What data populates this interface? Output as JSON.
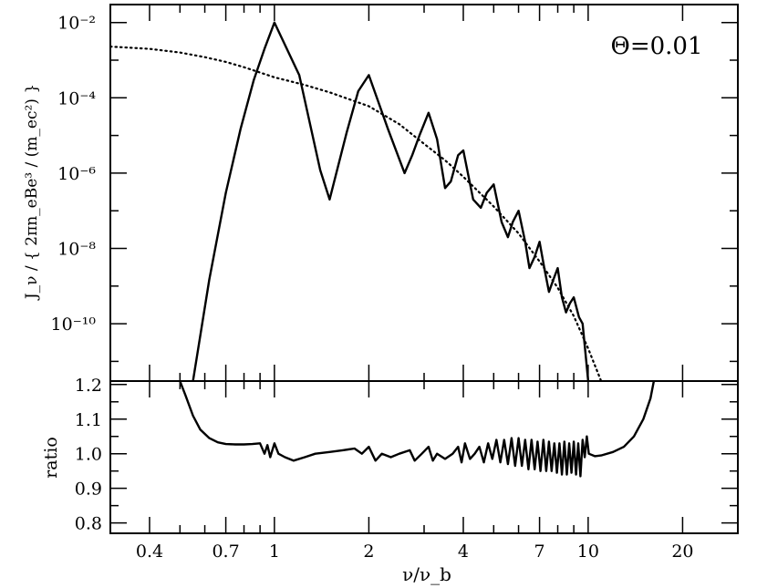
{
  "chart_data": [
    {
      "type": "line",
      "panel": "top",
      "annotation": "Θ=0.01",
      "ylabel": "J_ν / { 2πn_eBe³ / (m_ec²) }",
      "xscale": "log",
      "yscale": "log",
      "xlim": [
        0.3,
        30
      ],
      "ylim": [
        3e-12,
        0.03
      ],
      "yticks": [
        {
          "value": 1e-10,
          "label": "10⁻¹⁰"
        },
        {
          "value": 1e-08,
          "label": "10⁻⁸"
        },
        {
          "value": 1e-06,
          "label": "10⁻⁶"
        },
        {
          "value": 0.0001,
          "label": "10⁻⁴"
        },
        {
          "value": 0.01,
          "label": "10⁻²"
        }
      ],
      "series": [
        {
          "style": "solid",
          "x": [
            0.55,
            0.62,
            0.7,
            0.78,
            0.86,
            0.93,
            1.0,
            1.2,
            1.4,
            1.5,
            1.7,
            1.85,
            2.0,
            2.3,
            2.6,
            2.75,
            2.9,
            3.1,
            3.3,
            3.5,
            3.65,
            3.85,
            4.0,
            4.3,
            4.55,
            4.75,
            5.0,
            5.3,
            5.55,
            5.75,
            6.0,
            6.3,
            6.5,
            6.75,
            7.0,
            7.25,
            7.5,
            7.75,
            8.0,
            8.25,
            8.5,
            8.75,
            9.0,
            9.35,
            9.6,
            10.0
          ],
          "y": [
            3e-12,
            1.5e-09,
            3e-07,
            1.5e-05,
            0.0003,
            0.002,
            0.01,
            0.0004,
            1.2e-06,
            2e-07,
            1.2e-05,
            0.00015,
            0.0004,
            1.5e-05,
            1e-06,
            3e-06,
            1e-05,
            4e-05,
            8e-06,
            4e-07,
            6e-07,
            3e-06,
            4e-06,
            2e-07,
            1.2e-07,
            3e-07,
            5e-07,
            5e-08,
            2e-08,
            5e-08,
            1e-07,
            1.5e-08,
            3e-09,
            6e-09,
            1.5e-08,
            3e-09,
            7e-10,
            1.5e-09,
            3e-09,
            5e-10,
            2e-10,
            3.5e-10,
            5e-10,
            1.5e-10,
            1e-10,
            3e-12
          ]
        },
        {
          "style": "dotted",
          "x": [
            0.3,
            0.4,
            0.5,
            0.6,
            0.7,
            0.8,
            1.0,
            1.25,
            1.5,
            2.0,
            2.5,
            3.0,
            3.5,
            4.0,
            5.0,
            6.0,
            7.0,
            8.0,
            9.0,
            10.0,
            11.0
          ],
          "y": [
            0.0023,
            0.002,
            0.0016,
            0.0012,
            0.0009,
            0.00065,
            0.00035,
            0.00022,
            0.00014,
            6e-05,
            2e-05,
            6e-06,
            2.2e-06,
            8e-07,
            1.3e-07,
            2.5e-08,
            4.5e-09,
            9e-10,
            1.6e-10,
            2.2e-11,
            3e-12
          ]
        }
      ]
    },
    {
      "type": "line",
      "panel": "bottom",
      "xlabel": "ν/ν_b",
      "ylabel": "ratio",
      "xscale": "log",
      "xlim": [
        0.3,
        30
      ],
      "ylim": [
        0.77,
        1.21
      ],
      "yticks": [
        {
          "value": 0.8,
          "label": "0.8"
        },
        {
          "value": 0.9,
          "label": "0.9"
        },
        {
          "value": 1.0,
          "label": "1.0"
        },
        {
          "value": 1.1,
          "label": "1.1"
        },
        {
          "value": 1.2,
          "label": "1.2"
        }
      ],
      "xticks": [
        {
          "value": 0.4,
          "label": "0.4"
        },
        {
          "value": 0.7,
          "label": "0.7"
        },
        {
          "value": 1,
          "label": "1"
        },
        {
          "value": 2,
          "label": "2"
        },
        {
          "value": 4,
          "label": "4"
        },
        {
          "value": 7,
          "label": "7"
        },
        {
          "value": 10,
          "label": "10"
        },
        {
          "value": 20,
          "label": "20"
        }
      ],
      "series": [
        {
          "style": "solid",
          "x": [
            0.5,
            0.52,
            0.55,
            0.58,
            0.62,
            0.66,
            0.7,
            0.75,
            0.8,
            0.85,
            0.9,
            0.93,
            0.95,
            0.97,
            1.0,
            1.03,
            1.08,
            1.15,
            1.25,
            1.35,
            1.5,
            1.65,
            1.8,
            1.9,
            2.0,
            2.1,
            2.2,
            2.35,
            2.5,
            2.7,
            2.8,
            2.95,
            3.1,
            3.2,
            3.3,
            3.5,
            3.7,
            3.85,
            3.95,
            4.05,
            4.2,
            4.35,
            4.5,
            4.65,
            4.8,
            4.95,
            5.1,
            5.25,
            5.4,
            5.55,
            5.7,
            5.85,
            6.0,
            6.15,
            6.3,
            6.45,
            6.6,
            6.75,
            6.9,
            7.05,
            7.2,
            7.35,
            7.5,
            7.65,
            7.8,
            7.95,
            8.1,
            8.25,
            8.4,
            8.55,
            8.7,
            8.85,
            9.0,
            9.15,
            9.3,
            9.45,
            9.6,
            9.75,
            9.9,
            10.05,
            10.5,
            11.0,
            12.0,
            13.0,
            14.0,
            15.0,
            15.8,
            16.2
          ],
          "y": [
            1.21,
            1.17,
            1.11,
            1.07,
            1.045,
            1.033,
            1.028,
            1.027,
            1.027,
            1.028,
            1.03,
            1.0,
            1.025,
            0.99,
            1.03,
            1.0,
            0.99,
            0.98,
            0.99,
            1.0,
            1.005,
            1.01,
            1.015,
            1.0,
            1.02,
            0.98,
            1.0,
            0.99,
            1.0,
            1.01,
            0.98,
            1.0,
            1.02,
            0.98,
            1.0,
            0.985,
            1.0,
            1.02,
            0.975,
            1.03,
            0.985,
            1.0,
            1.02,
            0.975,
            1.03,
            0.985,
            1.04,
            0.975,
            1.04,
            0.97,
            1.045,
            0.965,
            1.045,
            0.965,
            1.04,
            0.955,
            1.04,
            0.955,
            1.035,
            0.95,
            1.04,
            0.95,
            1.035,
            0.95,
            1.03,
            0.945,
            1.03,
            0.94,
            1.035,
            0.94,
            1.03,
            0.945,
            1.035,
            0.94,
            1.03,
            0.935,
            1.04,
            0.99,
            1.05,
            1.0,
            0.993,
            0.995,
            1.005,
            1.02,
            1.05,
            1.1,
            1.16,
            1.21
          ]
        }
      ]
    }
  ]
}
